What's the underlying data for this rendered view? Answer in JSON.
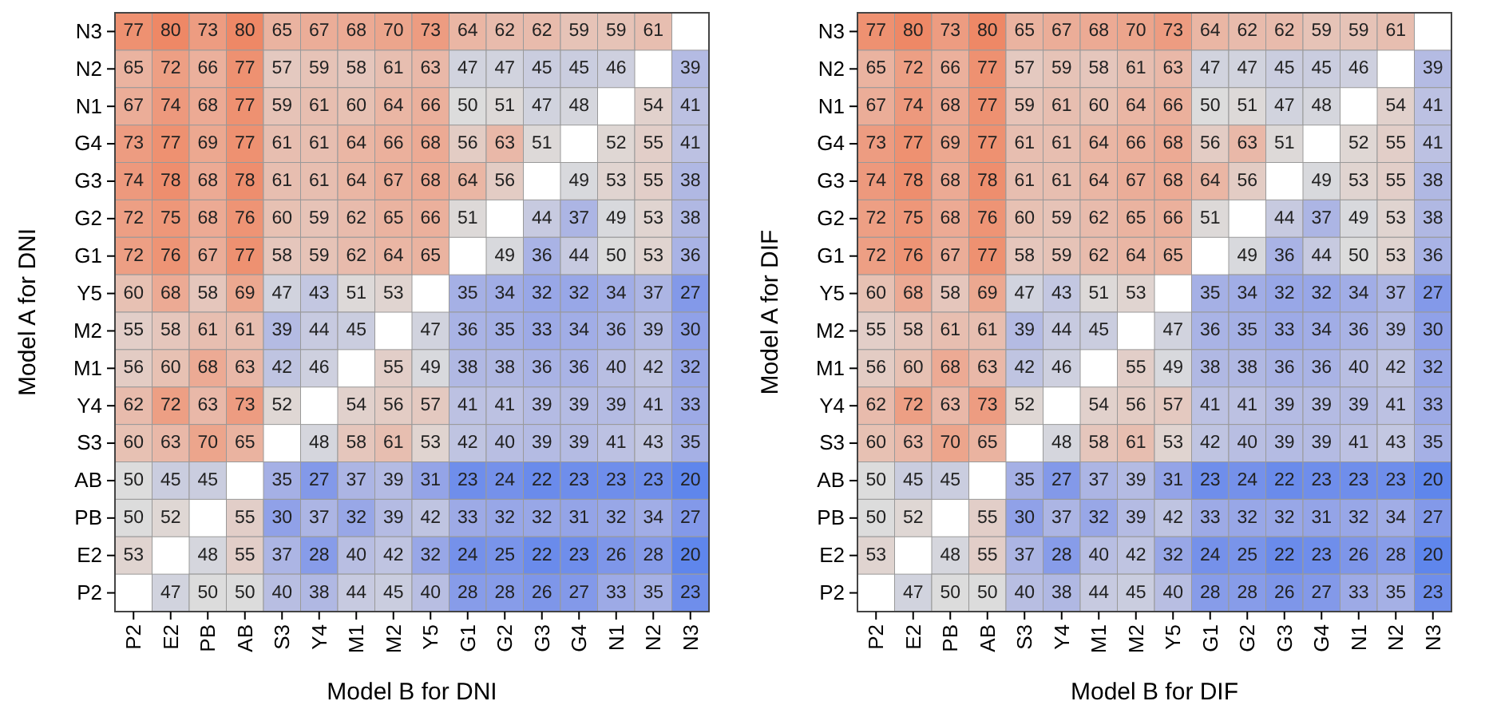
{
  "chart_data": [
    {
      "type": "heatmap",
      "xlabel": "Model B for DNI",
      "ylabel": "Model A for DNI",
      "data_labels": true,
      "categories": [
        "P2",
        "E2",
        "PB",
        "AB",
        "S3",
        "Y4",
        "M1",
        "M2",
        "Y5",
        "G1",
        "G2",
        "G3",
        "G4",
        "N1",
        "N2",
        "N3"
      ],
      "y_categories": [
        "N3",
        "N2",
        "N1",
        "G4",
        "G3",
        "G2",
        "G1",
        "Y5",
        "M2",
        "M1",
        "Y4",
        "S3",
        "AB",
        "PB",
        "E2",
        "P2"
      ],
      "cells": [
        [
          77,
          80,
          73,
          80,
          65,
          67,
          68,
          70,
          73,
          64,
          62,
          62,
          59,
          59,
          61,
          null
        ],
        [
          65,
          72,
          66,
          77,
          57,
          59,
          58,
          61,
          63,
          47,
          47,
          45,
          45,
          46,
          null,
          39
        ],
        [
          67,
          74,
          68,
          77,
          59,
          61,
          60,
          64,
          66,
          50,
          51,
          47,
          48,
          null,
          54,
          41
        ],
        [
          73,
          77,
          69,
          77,
          61,
          61,
          64,
          66,
          68,
          56,
          63,
          51,
          null,
          52,
          55,
          41
        ],
        [
          74,
          78,
          68,
          78,
          61,
          61,
          64,
          67,
          68,
          64,
          56,
          null,
          49,
          53,
          55,
          38
        ],
        [
          72,
          75,
          68,
          76,
          60,
          59,
          62,
          65,
          66,
          51,
          null,
          44,
          37,
          49,
          53,
          38
        ],
        [
          72,
          76,
          67,
          77,
          58,
          59,
          62,
          64,
          65,
          null,
          49,
          36,
          44,
          50,
          53,
          36
        ],
        [
          60,
          68,
          58,
          69,
          47,
          43,
          51,
          53,
          null,
          35,
          34,
          32,
          32,
          34,
          37,
          27
        ],
        [
          55,
          58,
          61,
          61,
          39,
          44,
          45,
          null,
          47,
          36,
          35,
          33,
          34,
          36,
          39,
          30
        ],
        [
          56,
          60,
          68,
          63,
          42,
          46,
          null,
          55,
          49,
          38,
          38,
          36,
          36,
          40,
          42,
          32
        ],
        [
          62,
          72,
          63,
          73,
          52,
          null,
          54,
          56,
          57,
          41,
          41,
          39,
          39,
          39,
          41,
          33
        ],
        [
          60,
          63,
          70,
          65,
          null,
          48,
          58,
          61,
          53,
          42,
          40,
          39,
          39,
          41,
          43,
          35
        ],
        [
          50,
          45,
          45,
          null,
          35,
          27,
          37,
          39,
          31,
          23,
          24,
          22,
          23,
          23,
          23,
          20
        ],
        [
          50,
          52,
          null,
          55,
          30,
          37,
          32,
          39,
          42,
          33,
          32,
          32,
          31,
          32,
          34,
          27
        ],
        [
          53,
          null,
          48,
          55,
          37,
          28,
          40,
          42,
          32,
          24,
          25,
          22,
          23,
          26,
          28,
          20
        ],
        [
          null,
          47,
          50,
          50,
          40,
          38,
          44,
          45,
          40,
          28,
          28,
          26,
          27,
          33,
          35,
          23
        ]
      ]
    },
    {
      "type": "heatmap",
      "xlabel": "Model B for DIF",
      "ylabel": "Model A for DIF",
      "data_labels": true,
      "categories": [
        "P2",
        "E2",
        "PB",
        "AB",
        "S3",
        "Y4",
        "M1",
        "M2",
        "Y5",
        "G1",
        "G2",
        "G3",
        "G4",
        "N1",
        "N2",
        "N3"
      ],
      "y_categories": [
        "N3",
        "N2",
        "N1",
        "G4",
        "G3",
        "G2",
        "G1",
        "Y5",
        "M2",
        "M1",
        "Y4",
        "S3",
        "AB",
        "PB",
        "E2",
        "P2"
      ],
      "cells": [
        [
          77,
          80,
          73,
          80,
          65,
          67,
          68,
          70,
          73,
          64,
          62,
          62,
          59,
          59,
          61,
          null
        ],
        [
          65,
          72,
          66,
          77,
          57,
          59,
          58,
          61,
          63,
          47,
          47,
          45,
          45,
          46,
          null,
          39
        ],
        [
          67,
          74,
          68,
          77,
          59,
          61,
          60,
          64,
          66,
          50,
          51,
          47,
          48,
          null,
          54,
          41
        ],
        [
          73,
          77,
          69,
          77,
          61,
          61,
          64,
          66,
          68,
          56,
          63,
          51,
          null,
          52,
          55,
          41
        ],
        [
          74,
          78,
          68,
          78,
          61,
          61,
          64,
          67,
          68,
          64,
          56,
          null,
          49,
          53,
          55,
          38
        ],
        [
          72,
          75,
          68,
          76,
          60,
          59,
          62,
          65,
          66,
          51,
          null,
          44,
          37,
          49,
          53,
          38
        ],
        [
          72,
          76,
          67,
          77,
          58,
          59,
          62,
          64,
          65,
          null,
          49,
          36,
          44,
          50,
          53,
          36
        ],
        [
          60,
          68,
          58,
          69,
          47,
          43,
          51,
          53,
          null,
          35,
          34,
          32,
          32,
          34,
          37,
          27
        ],
        [
          55,
          58,
          61,
          61,
          39,
          44,
          45,
          null,
          47,
          36,
          35,
          33,
          34,
          36,
          39,
          30
        ],
        [
          56,
          60,
          68,
          63,
          42,
          46,
          null,
          55,
          49,
          38,
          38,
          36,
          36,
          40,
          42,
          32
        ],
        [
          62,
          72,
          63,
          73,
          52,
          null,
          54,
          56,
          57,
          41,
          41,
          39,
          39,
          39,
          41,
          33
        ],
        [
          60,
          63,
          70,
          65,
          null,
          48,
          58,
          61,
          53,
          42,
          40,
          39,
          39,
          41,
          43,
          35
        ],
        [
          50,
          45,
          45,
          null,
          35,
          27,
          37,
          39,
          31,
          23,
          24,
          22,
          23,
          23,
          23,
          20
        ],
        [
          50,
          52,
          null,
          55,
          30,
          37,
          32,
          39,
          42,
          33,
          32,
          32,
          31,
          32,
          34,
          27
        ],
        [
          53,
          null,
          48,
          55,
          37,
          28,
          40,
          42,
          32,
          24,
          25,
          22,
          23,
          26,
          28,
          20
        ],
        [
          null,
          47,
          50,
          50,
          40,
          38,
          44,
          45,
          40,
          28,
          28,
          26,
          27,
          33,
          35,
          23
        ]
      ]
    }
  ]
}
